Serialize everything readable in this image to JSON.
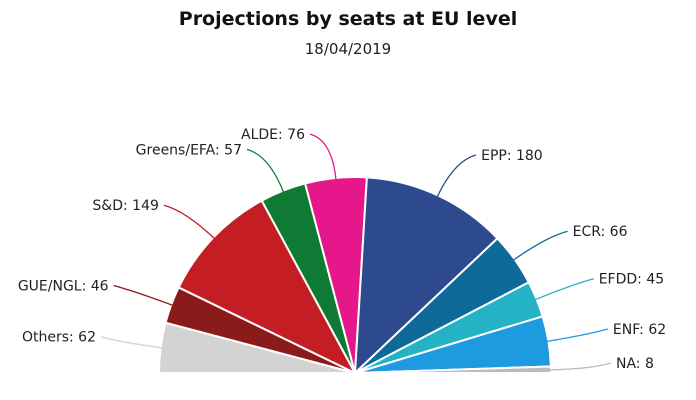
{
  "chart_data": {
    "type": "pie",
    "variant": "semicircle",
    "title": "Projections by seats at EU level",
    "subtitle": "18/04/2019",
    "series": [
      {
        "name": "Others",
        "value": 62,
        "label": "Others: 62",
        "color": "#d3d3d3"
      },
      {
        "name": "GUE/NGL",
        "value": 46,
        "label": "GUE/NGL: 46",
        "color": "#8b1a1a"
      },
      {
        "name": "S&D",
        "value": 149,
        "label": "S&D: 149",
        "color": "#c41e24"
      },
      {
        "name": "Greens/EFA",
        "value": 57,
        "label": "Greens/EFA: 57",
        "color": "#0f7a33"
      },
      {
        "name": "ALDE",
        "value": 76,
        "label": "ALDE: 76",
        "color": "#e5178b"
      },
      {
        "name": "EPP",
        "value": 180,
        "label": "EPP: 180",
        "color": "#2d4a8e"
      },
      {
        "name": "ECR",
        "value": 66,
        "label": "ECR: 66",
        "color": "#0e6a98"
      },
      {
        "name": "EFDD",
        "value": 45,
        "label": "EFDD: 45",
        "color": "#23b3c4"
      },
      {
        "name": "ENF",
        "value": 62,
        "label": "ENF: 62",
        "color": "#1e9ae0"
      },
      {
        "name": "NA",
        "value": 8,
        "label": "NA: 8",
        "color": "#bbbbbb"
      }
    ]
  }
}
